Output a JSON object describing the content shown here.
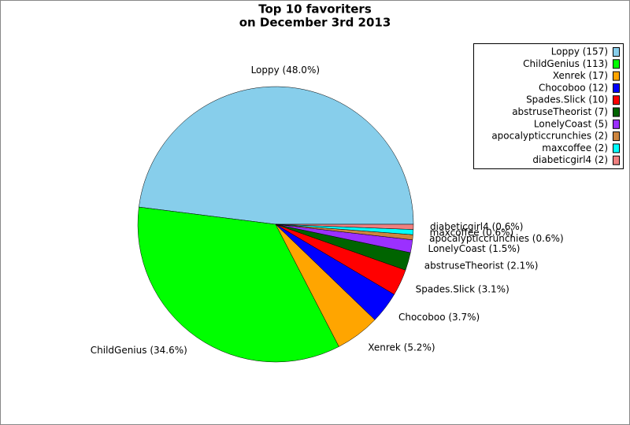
{
  "chart_data": {
    "type": "pie",
    "title": [
      "Top 10 favoriters",
      "on December 3rd 2013"
    ],
    "categories": [
      "Loppy",
      "ChildGenius",
      "Xenrek",
      "Chocoboo",
      "Spades.Slick",
      "abstruseTheorist",
      "LonelyCoast",
      "apocalypticcrunchies",
      "maxcoffee",
      "diabeticgirl4"
    ],
    "values": [
      48.0,
      34.6,
      5.2,
      3.7,
      3.1,
      2.1,
      1.5,
      0.6,
      0.6,
      0.6
    ],
    "value_labels": [
      "Loppy (48.0%)",
      "ChildGenius (34.6%)",
      "Xenrek (5.2%)",
      "Chocoboo (3.7%)",
      "Spades.Slick (3.1%)",
      "abstruseTheorist (2.1%)",
      "LonelyCoast (1.5%)",
      "apocalypticcrunchies (0.6%)",
      "maxcoffee (0.6%)",
      "diabeticgirl4 (0.6%)"
    ],
    "legend_labels": [
      "Loppy (157)",
      "ChildGenius (113)",
      "Xenrek (17)",
      "Chocoboo (12)",
      "Spades.Slick (10)",
      "abstruseTheorist (7)",
      "LonelyCoast (5)",
      "apocalypticcrunchies (2)",
      "maxcoffee (2)",
      "diabeticgirl4 (2)"
    ],
    "colors": [
      "#87ceeb",
      "#00ff00",
      "#ffa500",
      "#0000ff",
      "#ff0000",
      "#006400",
      "#9b30ff",
      "#cd853f",
      "#00ffff",
      "#f08080"
    ],
    "legend_position": "upper right"
  }
}
